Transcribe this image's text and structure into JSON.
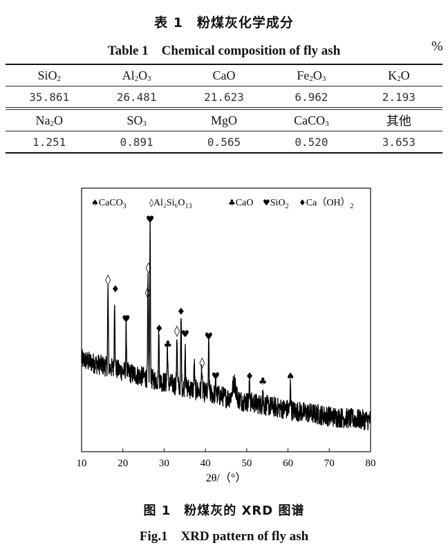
{
  "table": {
    "title_cn": "表 1　粉煤灰化学成分",
    "title_en": "Table 1　Chemical composition of fly ash",
    "unit": "%",
    "rows": [
      {
        "type": "header",
        "cells": [
          [
            [
              "SiO",
              ""
            ],
            [
              "2",
              "sub"
            ]
          ],
          [
            [
              "Al",
              ""
            ],
            [
              "2",
              "sub"
            ],
            [
              "O",
              ""
            ],
            [
              "3",
              "sub"
            ]
          ],
          [
            [
              "CaO",
              ""
            ]
          ],
          [
            [
              "Fe",
              ""
            ],
            [
              "2",
              "sub"
            ],
            [
              "O",
              ""
            ],
            [
              "3",
              "sub"
            ]
          ],
          [
            [
              "K",
              ""
            ],
            [
              "2",
              "sub"
            ],
            [
              "O",
              ""
            ]
          ]
        ]
      },
      {
        "type": "num",
        "cells": [
          [
            [
              "35.861",
              ""
            ]
          ],
          [
            [
              "26.481",
              ""
            ]
          ],
          [
            [
              "21.623",
              ""
            ]
          ],
          [
            [
              "6.962",
              ""
            ]
          ],
          [
            [
              "2.193",
              ""
            ]
          ]
        ]
      },
      {
        "type": "header",
        "cells": [
          [
            [
              "Na",
              ""
            ],
            [
              "2",
              "sub"
            ],
            [
              "O",
              ""
            ]
          ],
          [
            [
              "SO",
              ""
            ],
            [
              "3",
              "sub"
            ]
          ],
          [
            [
              "MgO",
              ""
            ]
          ],
          [
            [
              "CaCO",
              ""
            ],
            [
              "3",
              "sub"
            ]
          ],
          [
            [
              "其他",
              ""
            ]
          ]
        ]
      },
      {
        "type": "num",
        "cells": [
          [
            [
              "1.251",
              ""
            ]
          ],
          [
            [
              "0.891",
              ""
            ]
          ],
          [
            [
              "0.565",
              ""
            ]
          ],
          [
            [
              "0.520",
              ""
            ]
          ],
          [
            [
              "3.653",
              ""
            ]
          ]
        ]
      }
    ]
  },
  "chart_data": {
    "type": "line",
    "title": "",
    "xlabel": "2θ/（°）",
    "ylabel": "",
    "xlim": [
      10,
      80
    ],
    "ylim": [
      0,
      100
    ],
    "xticks": [
      10,
      20,
      30,
      40,
      50,
      60,
      70,
      80
    ],
    "grid": false,
    "legend_position": "top",
    "legend": [
      {
        "symbol": "♠",
        "label": "CaCO",
        "sub": "3"
      },
      {
        "symbol": "◊",
        "label": "Al₂Si₆O",
        "sub": "13"
      },
      {
        "symbol": "♣",
        "label": "CaO",
        "sub": ""
      },
      {
        "symbol": "♥",
        "label": "SiO",
        "sub": "2"
      },
      {
        "symbol": "♦",
        "label": "Ca（OH）",
        "sub": "2"
      }
    ],
    "baseline": {
      "start_intensity": 35,
      "end_intensity": 12,
      "noise": 4
    },
    "peaks": [
      {
        "x": 16.4,
        "y": 62
      },
      {
        "x": 18.0,
        "y": 59
      },
      {
        "x": 20.8,
        "y": 48
      },
      {
        "x": 26.1,
        "y": 66
      },
      {
        "x": 26.6,
        "y": 86
      },
      {
        "x": 28.7,
        "y": 46
      },
      {
        "x": 30.8,
        "y": 41
      },
      {
        "x": 33.1,
        "y": 45
      },
      {
        "x": 34.1,
        "y": 51
      },
      {
        "x": 35.1,
        "y": 42
      },
      {
        "x": 37.3,
        "y": 34
      },
      {
        "x": 39.1,
        "y": 33
      },
      {
        "x": 40.8,
        "y": 41
      },
      {
        "x": 42.5,
        "y": 27
      },
      {
        "x": 47.0,
        "y": 26
      },
      {
        "x": 50.7,
        "y": 28
      },
      {
        "x": 53.9,
        "y": 24
      },
      {
        "x": 60.6,
        "y": 27
      }
    ],
    "markers": [
      {
        "symbol": "◊",
        "x": 16.4,
        "y": 64.5
      },
      {
        "symbol": "♦",
        "x": 18.2,
        "y": 61
      },
      {
        "symbol": "♥",
        "x": 20.8,
        "y": 49.6
      },
      {
        "symbol": "♥",
        "x": 26.6,
        "y": 87.4
      },
      {
        "symbol": "◊",
        "x": 26.2,
        "y": 69
      },
      {
        "symbol": "◊",
        "x": 26.0,
        "y": 59.6
      },
      {
        "symbol": "♦",
        "x": 28.8,
        "y": 46
      },
      {
        "symbol": "♣",
        "x": 30.9,
        "y": 40
      },
      {
        "symbol": "◊",
        "x": 33.1,
        "y": 45
      },
      {
        "symbol": "♦",
        "x": 34.1,
        "y": 52.5
      },
      {
        "symbol": "♥",
        "x": 35.1,
        "y": 44
      },
      {
        "symbol": "◊",
        "x": 39.2,
        "y": 33
      },
      {
        "symbol": "♥",
        "x": 40.8,
        "y": 43
      },
      {
        "symbol": "♥",
        "x": 42.5,
        "y": 28
      },
      {
        "symbol": "♦",
        "x": 50.7,
        "y": 28
      },
      {
        "symbol": "♣",
        "x": 53.9,
        "y": 26
      },
      {
        "symbol": "♠",
        "x": 60.6,
        "y": 28
      }
    ]
  },
  "figure": {
    "caption_cn": "图 1　粉煤灰的 XRD 图谱",
    "caption_en": "Fig.1　XRD pattern of fly ash"
  }
}
